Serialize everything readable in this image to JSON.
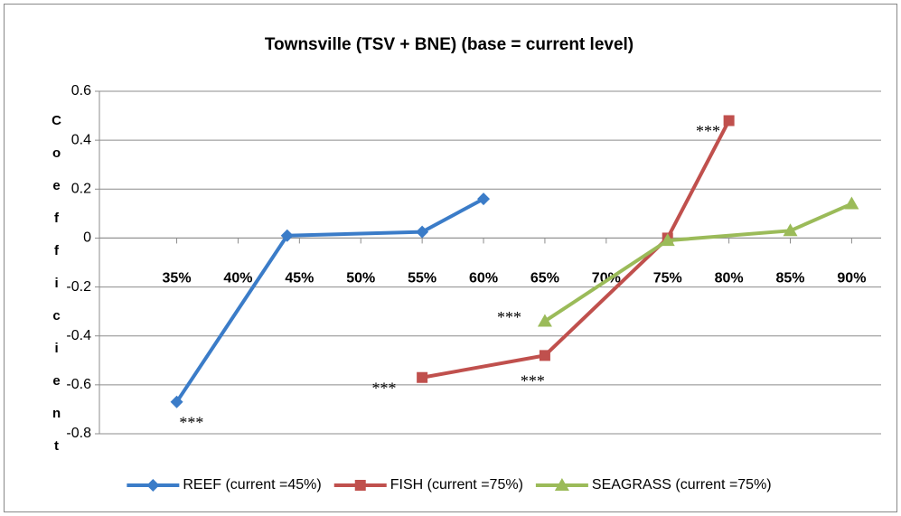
{
  "chart_data": {
    "type": "line",
    "title": "Townsville (TSV + BNE) (base = current level)",
    "y_label": "Coefficient",
    "xlim": [
      28.7,
      92.4
    ],
    "xticks": [
      {
        "value": 35,
        "label": "35%"
      },
      {
        "value": 40,
        "label": "40%"
      },
      {
        "value": 45,
        "label": "45%"
      },
      {
        "value": 50,
        "label": "50%"
      },
      {
        "value": 55,
        "label": "55%"
      },
      {
        "value": 60,
        "label": "60%"
      },
      {
        "value": 65,
        "label": "65%"
      },
      {
        "value": 70,
        "label": "70%"
      },
      {
        "value": 75,
        "label": "75%"
      },
      {
        "value": 80,
        "label": "80%"
      },
      {
        "value": 85,
        "label": "85%"
      },
      {
        "value": 90,
        "label": "90%"
      }
    ],
    "ylim": [
      -0.8,
      0.6
    ],
    "yticks": [
      -0.8,
      -0.6,
      -0.4,
      -0.2,
      0,
      0.2,
      0.4,
      0.6
    ],
    "grid": true,
    "legend": "bottom",
    "series": [
      {
        "name": "REEF (current =45%)",
        "color": "#3b7cc8",
        "marker": "diamond",
        "x": [
          35,
          44,
          55,
          60
        ],
        "values": [
          -0.67,
          0.01,
          0.025,
          0.16
        ]
      },
      {
        "name": "FISH (current =75%)",
        "color": "#c0504d",
        "marker": "square",
        "x": [
          55,
          65,
          75,
          80
        ],
        "values": [
          -0.57,
          -0.48,
          0,
          0.48
        ]
      },
      {
        "name": "SEAGRASS (current =75%)",
        "color": "#9bbb59",
        "marker": "triangle",
        "x": [
          65,
          75,
          85,
          90
        ],
        "values": [
          -0.34,
          -0.01,
          0.03,
          0.14
        ]
      }
    ],
    "annotations": [
      {
        "text": "***",
        "x": 36.2,
        "y": -0.76
      },
      {
        "text": "***",
        "x": 51.9,
        "y": -0.62
      },
      {
        "text": "***",
        "x": 64,
        "y": -0.59
      },
      {
        "text": "***",
        "x": 78.3,
        "y": 0.43
      },
      {
        "text": "***",
        "x": 62.1,
        "y": -0.33
      }
    ]
  }
}
